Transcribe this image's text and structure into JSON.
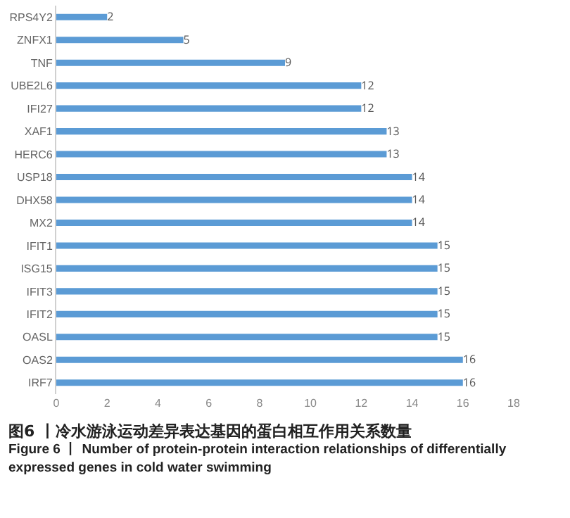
{
  "chart_data": {
    "type": "bar",
    "orientation": "horizontal",
    "categories": [
      "RPS4Y2",
      "ZNFX1",
      "TNF",
      "UBE2L6",
      "IFI27",
      "XAF1",
      "HERC6",
      "USP18",
      "DHX58",
      "MX2",
      "IFIT1",
      "ISG15",
      "IFIT3",
      "IFIT2",
      "OASL",
      "OAS2",
      "IRF7"
    ],
    "values": [
      2,
      5,
      9,
      12,
      12,
      13,
      13,
      14,
      14,
      14,
      15,
      15,
      15,
      15,
      15,
      16,
      16
    ],
    "color": "#5b9bd5",
    "xlim": [
      0,
      18
    ],
    "xticks": [
      0,
      2,
      4,
      6,
      8,
      10,
      12,
      14,
      16,
      18
    ],
    "grid": false,
    "legend": false,
    "data_labels": true,
    "annotations": [
      "图6 丨冷水游泳运动差异表达基因的蛋白相互作用关系数量",
      "Figure 6  丨 Number of protein-protein interaction relationships of differentially expressed genes in cold water swimming"
    ]
  }
}
